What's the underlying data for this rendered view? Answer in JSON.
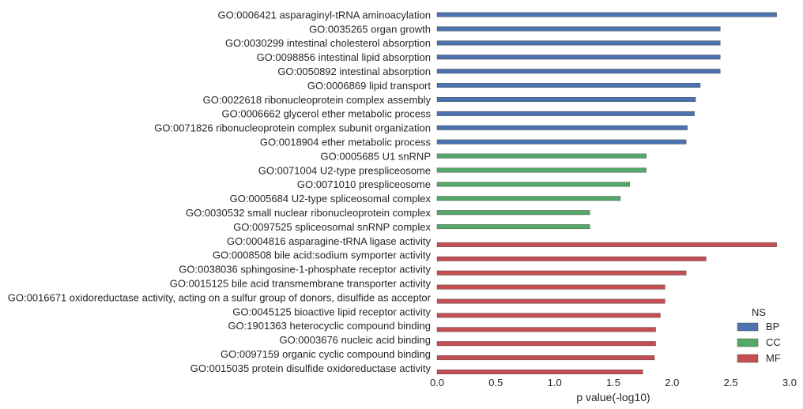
{
  "chart_data": {
    "type": "bar",
    "orientation": "horizontal",
    "xlabel": "p value(-log10)",
    "xlim": [
      0,
      3.0
    ],
    "xticks": [
      "0.0",
      "0.5",
      "1.0",
      "1.5",
      "2.0",
      "2.5",
      "3.0"
    ],
    "grid": false,
    "legend": {
      "title": "NS",
      "placement": "bottom-right",
      "entries": [
        {
          "name": "BP",
          "color": "#4c72b0"
        },
        {
          "name": "CC",
          "color": "#55a868"
        },
        {
          "name": "MF",
          "color": "#c44e52"
        }
      ]
    },
    "categories": [
      "GO:0006421 asparaginyl-tRNA aminoacylation",
      "GO:0035265 organ growth",
      "GO:0030299 intestinal cholesterol absorption",
      "GO:0098856 intestinal lipid absorption",
      "GO:0050892 intestinal absorption",
      "GO:0006869 lipid transport",
      "GO:0022618 ribonucleoprotein complex assembly",
      "GO:0006662 glycerol ether metabolic process",
      "GO:0071826 ribonucleoprotein complex subunit organization",
      "GO:0018904 ether metabolic process",
      "GO:0005685 U1 snRNP",
      "GO:0071004 U2-type prespliceosome",
      "GO:0071010 prespliceosome",
      "GO:0005684 U2-type spliceosomal complex",
      "GO:0030532 small nuclear ribonucleoprotein complex",
      "GO:0097525 spliceosomal snRNP complex",
      "GO:0004816 asparagine-tRNA ligase activity",
      "GO:0008508 bile acid:sodium symporter activity",
      "GO:0038036 sphingosine-1-phosphate receptor activity",
      "GO:0015125 bile acid transmembrane transporter activity",
      "GO:0016671 oxidoreductase activity, acting on a sulfur group of donors, disulfide as acceptor",
      "GO:0045125 bioactive lipid receptor activity",
      "GO:1901363 heterocyclic compound binding",
      "GO:0003676 nucleic acid binding",
      "GO:0097159 organic cyclic compound binding",
      "GO:0015035 protein disulfide oxidoreductase activity"
    ],
    "series": [
      {
        "name": "BP",
        "color": "#4c72b0",
        "values": [
          2.89,
          2.41,
          2.41,
          2.41,
          2.41,
          2.24,
          2.2,
          2.19,
          2.13,
          2.12,
          null,
          null,
          null,
          null,
          null,
          null,
          null,
          null,
          null,
          null,
          null,
          null,
          null,
          null,
          null,
          null
        ]
      },
      {
        "name": "CC",
        "color": "#55a868",
        "values": [
          null,
          null,
          null,
          null,
          null,
          null,
          null,
          null,
          null,
          null,
          1.78,
          1.78,
          1.64,
          1.56,
          1.3,
          1.3,
          null,
          null,
          null,
          null,
          null,
          null,
          null,
          null,
          null,
          null
        ]
      },
      {
        "name": "MF",
        "color": "#c44e52",
        "values": [
          null,
          null,
          null,
          null,
          null,
          null,
          null,
          null,
          null,
          null,
          null,
          null,
          null,
          null,
          null,
          null,
          2.89,
          2.29,
          2.12,
          1.94,
          1.94,
          1.9,
          1.86,
          1.86,
          1.85,
          1.75
        ]
      }
    ]
  }
}
